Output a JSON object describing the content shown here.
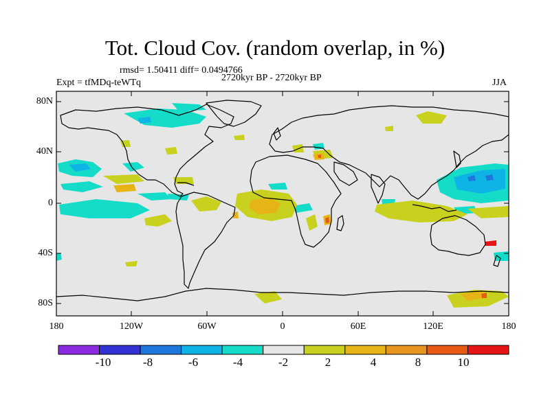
{
  "title": "Tot. Cloud Cov. (random overlap, in %)",
  "stats_line": "rmsd= 1.50411 diff= 0.0494766",
  "experiment": "Expt = tfMDq-teWTq",
  "period": "2720kyr BP - 2720kyr BP",
  "season": "JJA",
  "map": {
    "background_color": "#e6e6e6",
    "lat_ticks": [
      "80N",
      "40N",
      "0",
      "40S",
      "80S"
    ],
    "lon_ticks": [
      "180",
      "120W",
      "60W",
      "0",
      "60E",
      "120E",
      "180"
    ]
  },
  "colorbar": {
    "labels": [
      "-10",
      "-8",
      "-6",
      "-4",
      "-2",
      "2",
      "4",
      "8",
      "10"
    ],
    "colors": [
      "#8a2be2",
      "#3232d2",
      "#1e78dc",
      "#0fb4e6",
      "#14dcc8",
      "#e6e6e6",
      "#c8d21e",
      "#e6b414",
      "#e6961e",
      "#e65a14",
      "#e61414"
    ]
  }
}
